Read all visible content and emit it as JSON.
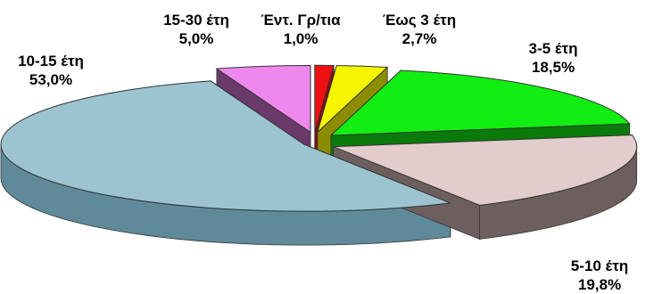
{
  "chart_data": {
    "type": "pie",
    "style": "3d-exploded",
    "title": "",
    "slices": [
      {
        "label": "Έντ. Γρ/τια",
        "value": 1.0,
        "value_label": "1,0%",
        "color": "#ee1111",
        "side_color": "#8a0a0a"
      },
      {
        "label": "Έως 3 έτη",
        "value": 2.7,
        "value_label": "2,7%",
        "color": "#f5f500",
        "side_color": "#8c8c00"
      },
      {
        "label": "3-5 έτη",
        "value": 18.5,
        "value_label": "18,5%",
        "color": "#11ee11",
        "side_color": "#0a7a0a"
      },
      {
        "label": "5-10 έτη",
        "value": 19.8,
        "value_label": "19,8%",
        "color": "#e2cccc",
        "side_color": "#6e5f5f"
      },
      {
        "label": "10-15 έτη",
        "value": 53.0,
        "value_label": "53,0%",
        "color": "#9cc3d0",
        "side_color": "#5f8a9a"
      },
      {
        "label": "15-30 έτη",
        "value": 5.0,
        "value_label": "5,0%",
        "color": "#ee88ee",
        "side_color": "#6a3a6a"
      }
    ]
  }
}
